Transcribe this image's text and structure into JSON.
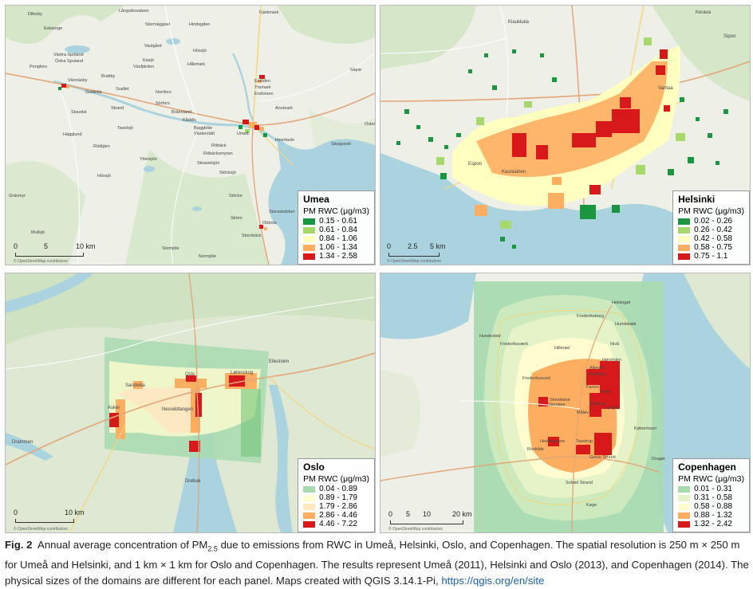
{
  "panels": {
    "umea": {
      "region": "Umea",
      "legend_title": "PM RWC (μg/m3)",
      "classes": [
        {
          "label": "0.15 - 0.61",
          "color": "#1a9641"
        },
        {
          "label": "0.61 - 0.84",
          "color": "#a6d96a"
        },
        {
          "label": "0.84 - 1.06",
          "color": "#ffffc0"
        },
        {
          "label": "1.06 - 1.34",
          "color": "#fdae61"
        },
        {
          "label": "1.34 - 2.58",
          "color": "#d7191c"
        }
      ],
      "scale": [
        "0",
        "5",
        "10 km"
      ],
      "credit": "© OpenStreetMap contributors",
      "places": [
        "Dilkoby",
        "Långviksvalsen",
        "Fjärkmark",
        "Stormäggsel",
        "Hindsgden",
        "Eskarnge",
        "Västra Spoland",
        "Östra Spoland",
        "Vastgård",
        "Pengfors",
        "Kasjö",
        "Väsfjärden",
        "Hössjö",
        "Vännäsby",
        "Brattby",
        "Håkmark",
        "Gubböle",
        "Svallet",
        "Norrfors",
        "Ersliden",
        "Yrsmark",
        "Säyar",
        "Ersforsen",
        "Strand",
        "Sörfors",
        "Brännland",
        "Anumark",
        "Skavdal",
        "Kåddis",
        "Baggböle",
        "Västerslätt",
        "Umeå",
        "Tavelsjö",
        "Hägglund",
        "Rödtjärn",
        "Röbäck",
        "Innertavle",
        "Skeppsvik",
        "Ostnäs",
        "Röbäcksmyran",
        "Yttersjön",
        "Skravelsjön",
        "Stöcksjö",
        "Hössjö",
        "Stöcke",
        "Gräsmyr",
        "Ström",
        "Obbola",
        "Storsandsket",
        "Mullsjö",
        "Stornbäck",
        "Sörmjöle",
        "Normjöle"
      ]
    },
    "helsinki": {
      "region": "Helsinki",
      "legend_title": "PM RWC (μg/m3)",
      "classes": [
        {
          "label": "0.02 - 0.26",
          "color": "#1a9641"
        },
        {
          "label": "0.26 - 0.42",
          "color": "#a6d96a"
        },
        {
          "label": "0.42 - 0.58",
          "color": "#ffffc0"
        },
        {
          "label": "0.58 - 0.75",
          "color": "#fdae61"
        },
        {
          "label": "0.75 - 1.1",
          "color": "#d7191c"
        }
      ],
      "scale": [
        "0",
        "2.5",
        "5 km"
      ],
      "credit": "© OpenStreetMap contributors",
      "places": [
        "Klaukkala",
        "Kerava",
        "Sipoo",
        "Vantaa",
        "Espoo",
        "Kauniainen"
      ]
    },
    "oslo": {
      "region": "Oslo",
      "legend_title": "PM RWC (μg/m3)",
      "classes": [
        {
          "label": "0.04 - 0.89",
          "color": "#a8dab0"
        },
        {
          "label": "0.89 - 1.79",
          "color": "#fffdd0"
        },
        {
          "label": "1.79 - 2.86",
          "color": "#fde8c0"
        },
        {
          "label": "2.86 - 4.46",
          "color": "#fdae61"
        },
        {
          "label": "4.46 - 7.22",
          "color": "#d7191c"
        }
      ],
      "scale": [
        "0",
        "10 km"
      ],
      "credit": "© OpenStreetMap contributors",
      "places": [
        "Sandvika",
        "Oslo",
        "Lørenskog",
        "Asker",
        "Nesoddtangen",
        "Drammen",
        "Ellestrøm",
        "Drøbak"
      ]
    },
    "copenhagen": {
      "region": "Copenhagen",
      "legend_title": "PM RWC (μg/m3)",
      "classes": [
        {
          "label": "0.01 - 0.31",
          "color": "#a8dab0"
        },
        {
          "label": "0.31 - 0.58",
          "color": "#e6f3c9"
        },
        {
          "label": "0.58 - 0.88",
          "color": "#fffdd0"
        },
        {
          "label": "0.88 - 1.32",
          "color": "#fdae61"
        },
        {
          "label": "1.32 - 2.42",
          "color": "#d7191c"
        }
      ],
      "scale": [
        "0",
        "5",
        "10",
        "20 km"
      ],
      "credit": "© OpenStreetMap contributors",
      "places": [
        "Helsingør",
        "Frederiksborg",
        "Humlebæk",
        "Hundested",
        "Frederiksværk",
        "Hillerød",
        "Nivå",
        "Hørsholm",
        "Allerød",
        "Birkerød",
        "Frederikssund",
        "Farum",
        "Holte",
        "Skenkløse",
        "Stenløse",
        "Ballerup",
        "Lyngby",
        "Måløv",
        "Roskilde",
        "Hedehusene",
        "Taastrup",
        "København",
        "Køge",
        "Dragør",
        "Greve Strand",
        "Solrød Strand"
      ]
    }
  },
  "caption": {
    "fig_label": "Fig. 2",
    "text_1": "Annual average concentration of PM",
    "subscript": "2.5",
    "text_2": " due to emissions from RWC in Umeå, Helsinki, Oslo, and Copenhagen. The spatial resolution is 250 m × 250 m for Umeå and Helsinki, and 1 km × 1 km for Oslo and Copenhagen. The results represent Umeå (2011), Helsinki and Oslo (2013), and Copenhagen (2014). The physical sizes of the domains are different for each panel. Maps created with QGIS 3.14.1-Pi, ",
    "link": "https://qgis.org/en/site"
  }
}
